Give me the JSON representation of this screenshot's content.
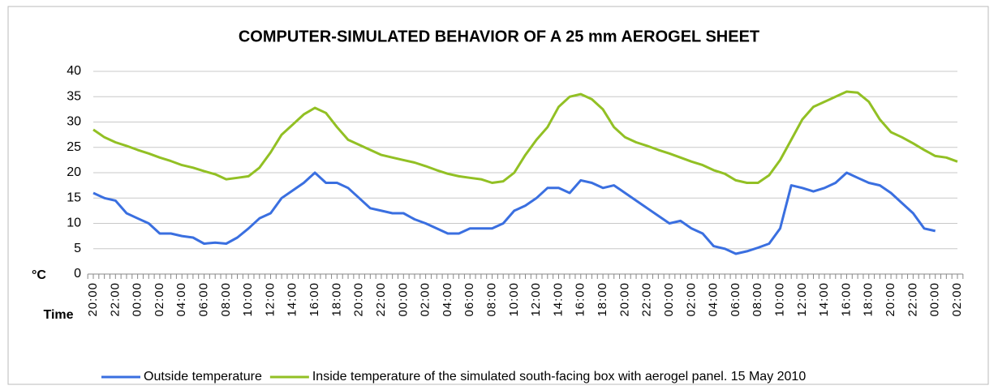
{
  "chart_data": {
    "type": "line",
    "title": "COMPUTER-SIMULATED BEHAVIOR OF A 25 mm AEROGEL SHEET",
    "y_label": "°C",
    "x_label": "Time",
    "categories": [
      "20:00",
      null,
      "22:00",
      null,
      "00:00",
      null,
      "02:00",
      null,
      "04:00",
      null,
      "06:00",
      null,
      "08:00",
      null,
      "10:00",
      null,
      "12:00",
      null,
      "14:00",
      null,
      "16:00",
      null,
      "18:00",
      null,
      "20:00",
      null,
      "22:00",
      null,
      "00:00",
      null,
      "02:00",
      null,
      "04:00",
      null,
      "06:00",
      null,
      "08:00",
      null,
      "10:00",
      null,
      "12:00",
      null,
      "14:00",
      null,
      "16:00",
      null,
      "18:00",
      null,
      "20:00",
      null,
      "22:00",
      null,
      "00:00",
      null,
      "02:00",
      null,
      "04:00",
      null,
      "06:00",
      null,
      "08:00",
      null,
      "10:00",
      null,
      "12:00",
      null,
      "14:00",
      null,
      "16:00",
      null,
      "18:00",
      null,
      "20:00",
      null,
      "22:00",
      null,
      "00:00",
      null,
      "02:00"
    ],
    "series": [
      {
        "name": "Outside temperature",
        "color": "#3a6fe0",
        "values": [
          16,
          15,
          14.5,
          12,
          11,
          10,
          8,
          8,
          7.5,
          7.2,
          6,
          6.2,
          6,
          7.2,
          9,
          11,
          12,
          15,
          16.5,
          18,
          20,
          18,
          18,
          17,
          15,
          13,
          12.5,
          12,
          12,
          10.8,
          10,
          9,
          8,
          8,
          9,
          9,
          9,
          10,
          12.5,
          13.5,
          15,
          17,
          17,
          16,
          18.5,
          18,
          17,
          17.5,
          16,
          14.5,
          13,
          11.5,
          10,
          10.5,
          9,
          8,
          5.5,
          5,
          4,
          4.5,
          5.2,
          6,
          9,
          17.5,
          17,
          16.3,
          17,
          18,
          20,
          19,
          18,
          17.5,
          16,
          14,
          12,
          9,
          8.5,
          null,
          null
        ]
      },
      {
        "name": "Inside temperature of the simulated south-facing box with aerogel panel. 15 May 2010",
        "color": "#92c024",
        "values": [
          28.5,
          27,
          26,
          25.3,
          24.5,
          23.8,
          23,
          22.3,
          21.5,
          21,
          20.3,
          19.7,
          18.7,
          19,
          19.3,
          21,
          24,
          27.5,
          29.5,
          31.5,
          32.8,
          31.8,
          29,
          26.5,
          25.5,
          24.5,
          23.5,
          23,
          22.5,
          22,
          21.3,
          20.5,
          19.8,
          19.3,
          19,
          18.7,
          18,
          18.3,
          20,
          23.5,
          26.5,
          29,
          33,
          35,
          35.5,
          34.5,
          32.5,
          29,
          27,
          26,
          25.3,
          24.5,
          23.8,
          23,
          22.2,
          21.5,
          20.5,
          19.8,
          18.5,
          18,
          18,
          19.5,
          22.5,
          26.5,
          30.5,
          33,
          34,
          35,
          36,
          35.8,
          34,
          30.5,
          28,
          27,
          25.8,
          24.5,
          23.3,
          23,
          22.2
        ]
      }
    ],
    "ylim": [
      0,
      40
    ],
    "yticks": [
      0,
      5,
      10,
      15,
      20,
      25,
      30,
      35,
      40
    ],
    "grid": true,
    "legend": "bottom"
  }
}
